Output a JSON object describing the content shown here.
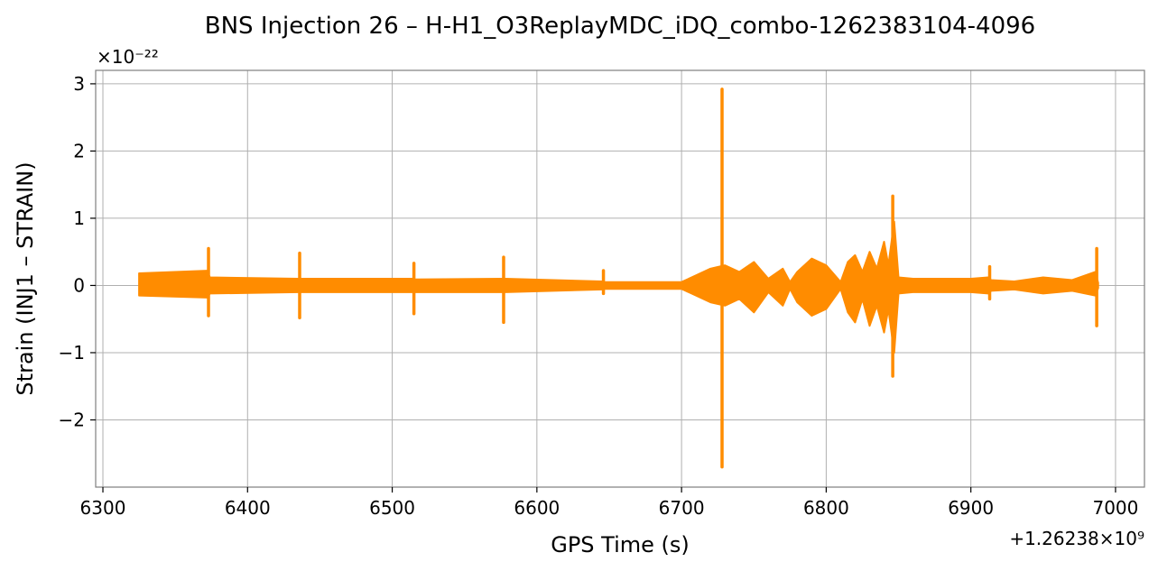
{
  "chart_data": {
    "type": "line",
    "title": "BNS Injection 26 – H-H1_O3ReplayMDC_iDQ_combo-1262383104-4096",
    "xlabel": "GPS Time (s)",
    "ylabel": "Strain (INJ1 – STRAIN)",
    "x_offset_label": "+1.26238×10⁹",
    "y_scale_label": "×10⁻²²",
    "xlim": [
      6295,
      7020
    ],
    "ylim": [
      -3.0,
      3.2
    ],
    "x_ticks": [
      6300,
      6400,
      6500,
      6600,
      6700,
      6800,
      6900,
      7000
    ],
    "x_tick_labels": [
      "6300",
      "6400",
      "6500",
      "6600",
      "6700",
      "6800",
      "6900",
      "7000"
    ],
    "y_ticks": [
      -2,
      -1,
      0,
      1,
      2,
      3
    ],
    "y_tick_labels": [
      "−2",
      "−1",
      "0",
      "1",
      "2",
      "3"
    ],
    "grid": true,
    "series": [
      {
        "color": "#ff8c00",
        "envelope": {
          "x": [
            6325,
            6372,
            6374,
            6435,
            6437,
            6514,
            6516,
            6576,
            6578,
            6645,
            6647,
            6700,
            6710,
            6720,
            6730,
            6740,
            6750,
            6760,
            6770,
            6775,
            6780,
            6790,
            6800,
            6810,
            6815,
            6820,
            6825,
            6830,
            6835,
            6840,
            6843,
            6847,
            6850,
            6860,
            6880,
            6900,
            6912,
            6914,
            6930,
            6950,
            6970,
            6986,
            6988
          ],
          "upper": [
            0.18,
            0.22,
            0.12,
            0.1,
            0.1,
            0.1,
            0.09,
            0.1,
            0.1,
            0.06,
            0.05,
            0.05,
            0.15,
            0.25,
            0.3,
            0.2,
            0.35,
            0.1,
            0.25,
            0.05,
            0.2,
            0.4,
            0.3,
            0.05,
            0.35,
            0.45,
            0.2,
            0.5,
            0.25,
            0.65,
            0.3,
            0.95,
            0.12,
            0.1,
            0.1,
            0.1,
            0.12,
            0.08,
            0.06,
            0.12,
            0.08,
            0.2,
            0.04
          ],
          "lower": [
            -0.15,
            -0.18,
            -0.12,
            -0.1,
            -0.1,
            -0.1,
            -0.1,
            -0.1,
            -0.1,
            -0.06,
            -0.05,
            -0.05,
            -0.15,
            -0.25,
            -0.3,
            -0.2,
            -0.4,
            -0.1,
            -0.3,
            -0.05,
            -0.25,
            -0.45,
            -0.35,
            -0.05,
            -0.4,
            -0.55,
            -0.2,
            -0.6,
            -0.3,
            -0.7,
            -0.35,
            -1.0,
            -0.12,
            -0.1,
            -0.1,
            -0.1,
            -0.12,
            -0.08,
            -0.06,
            -0.12,
            -0.08,
            -0.15,
            -0.04
          ]
        },
        "spikes": [
          {
            "x": 6373,
            "max": 0.55,
            "min": -0.45
          },
          {
            "x": 6436,
            "max": 0.48,
            "min": -0.48
          },
          {
            "x": 6515,
            "max": 0.33,
            "min": -0.42
          },
          {
            "x": 6577,
            "max": 0.42,
            "min": -0.55
          },
          {
            "x": 6646,
            "max": 0.22,
            "min": -0.12
          },
          {
            "x": 6728,
            "max": 2.92,
            "min": -2.7
          },
          {
            "x": 6846,
            "max": 1.33,
            "min": -1.35
          },
          {
            "x": 6913,
            "max": 0.28,
            "min": -0.2
          },
          {
            "x": 6987,
            "max": 0.55,
            "min": -0.6
          }
        ]
      }
    ]
  }
}
